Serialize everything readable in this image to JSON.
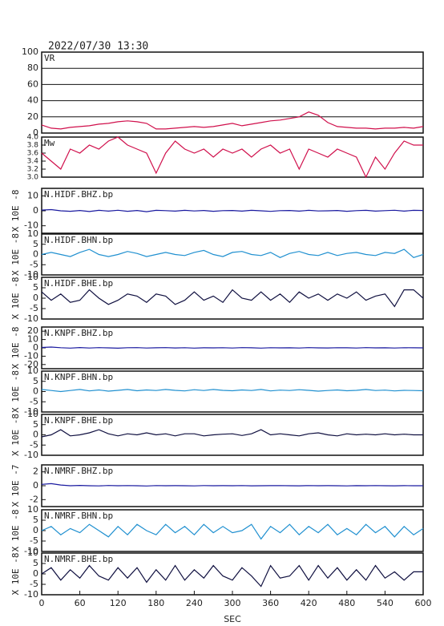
{
  "chart_data": [
    {
      "type": "line",
      "title": "2022/07/30 13:30",
      "label": "VR",
      "color": "#d0104c",
      "grid": true,
      "xlim": [
        0,
        600
      ],
      "ylim": [
        0,
        100
      ],
      "yticks": [
        0,
        20,
        40,
        60,
        80,
        100
      ],
      "x": [
        0,
        15,
        30,
        45,
        60,
        75,
        90,
        105,
        120,
        135,
        150,
        165,
        180,
        195,
        210,
        225,
        240,
        255,
        270,
        285,
        300,
        315,
        330,
        345,
        360,
        375,
        390,
        405,
        420,
        435,
        450,
        465,
        480,
        495,
        510,
        525,
        540,
        555,
        570,
        585,
        600
      ],
      "values": [
        10,
        6,
        5,
        7,
        8,
        9,
        11,
        12,
        14,
        15,
        14,
        12,
        5,
        5,
        6,
        7,
        8,
        7,
        8,
        10,
        12,
        9,
        11,
        13,
        15,
        16,
        18,
        20,
        26,
        22,
        13,
        8,
        7,
        6,
        6,
        5,
        6,
        6,
        7,
        6,
        8
      ]
    },
    {
      "type": "line",
      "label": "Mw",
      "color": "#d0104c",
      "grid": false,
      "xlim": [
        0,
        600
      ],
      "ylim": [
        3,
        4
      ],
      "yticks": [
        {
          "value": 3,
          "label": "3.0"
        },
        3.2,
        3.4,
        3.6,
        3.8,
        {
          "value": 4,
          "label": "4.0"
        }
      ],
      "x": [
        0,
        15,
        30,
        45,
        60,
        75,
        90,
        105,
        120,
        135,
        150,
        165,
        180,
        195,
        210,
        225,
        240,
        255,
        270,
        285,
        300,
        315,
        330,
        345,
        360,
        375,
        390,
        405,
        420,
        435,
        450,
        465,
        480,
        495,
        510,
        525,
        540,
        555,
        570,
        585,
        600
      ],
      "values": [
        3.6,
        3.4,
        3.2,
        3.7,
        3.6,
        3.8,
        3.7,
        3.9,
        4.0,
        3.8,
        3.7,
        3.6,
        3.1,
        3.6,
        3.9,
        3.7,
        3.6,
        3.7,
        3.5,
        3.7,
        3.6,
        3.7,
        3.5,
        3.7,
        3.8,
        3.6,
        3.7,
        3.2,
        3.7,
        3.6,
        3.5,
        3.7,
        3.6,
        3.5,
        3.0,
        3.5,
        3.2,
        3.6,
        3.9,
        3.8,
        3.8
      ]
    },
    {
      "type": "line",
      "label": "N.HIDF.BHZ.bp",
      "ylabel": "X 10E -8",
      "color": "#1a1aa0",
      "grid": false,
      "xlim": [
        0,
        600
      ],
      "ylim": [
        -15,
        15
      ],
      "yticks": [
        -10,
        0,
        10
      ],
      "x": [
        0,
        15,
        30,
        45,
        60,
        75,
        90,
        105,
        120,
        135,
        150,
        165,
        180,
        195,
        210,
        225,
        240,
        255,
        270,
        285,
        300,
        315,
        330,
        345,
        360,
        375,
        390,
        405,
        420,
        435,
        450,
        465,
        480,
        495,
        510,
        525,
        540,
        555,
        570,
        585,
        600
      ],
      "values": [
        0.5,
        0.8,
        0,
        -0.3,
        0.2,
        -0.5,
        0.3,
        -0.2,
        0.4,
        -0.3,
        0.2,
        -0.6,
        0.3,
        0.1,
        -0.2,
        0.3,
        -0.1,
        0.2,
        -0.3,
        0.1,
        0.2,
        -0.2,
        0.3,
        0,
        -0.4,
        0.1,
        0.2,
        -0.2,
        0.3,
        -0.1,
        0,
        0.2,
        -0.3,
        0.1,
        0.3,
        -0.2,
        0.1,
        0.4,
        -0.2,
        0.3,
        0.2
      ]
    },
    {
      "type": "line",
      "label": "N.HIDF.BHN.bp",
      "ylabel": "X 10E -8",
      "color": "#2090d0",
      "grid": false,
      "xlim": [
        0,
        600
      ],
      "ylim": [
        -10,
        10
      ],
      "yticks": [
        -10,
        -5,
        0,
        5,
        10
      ],
      "x": [
        0,
        15,
        30,
        45,
        60,
        75,
        90,
        105,
        120,
        135,
        150,
        165,
        180,
        195,
        210,
        225,
        240,
        255,
        270,
        285,
        300,
        315,
        330,
        345,
        360,
        375,
        390,
        405,
        420,
        435,
        450,
        465,
        480,
        495,
        510,
        525,
        540,
        555,
        570,
        585,
        600
      ],
      "values": [
        0,
        1,
        0,
        -1,
        1,
        2.5,
        0,
        -1,
        0,
        1.5,
        0.5,
        -1,
        0,
        1,
        0,
        -0.5,
        1,
        2,
        0,
        -1,
        1,
        1.5,
        0,
        -0.5,
        1,
        -1.5,
        0.5,
        1.5,
        0,
        -0.5,
        1,
        -0.5,
        0.5,
        1,
        0,
        -0.5,
        1,
        0.5,
        2.5,
        -1.5,
        0
      ]
    },
    {
      "type": "line",
      "label": "N.HIDF.BHE.bp",
      "ylabel": "X 10E -8",
      "color": "#101040",
      "grid": false,
      "xlim": [
        0,
        600
      ],
      "ylim": [
        -10,
        10
      ],
      "yticks": [
        -10,
        -5,
        0,
        5,
        10
      ],
      "x": [
        0,
        15,
        30,
        45,
        60,
        75,
        90,
        105,
        120,
        135,
        150,
        165,
        180,
        195,
        210,
        225,
        240,
        255,
        270,
        285,
        300,
        315,
        330,
        345,
        360,
        375,
        390,
        405,
        420,
        435,
        450,
        465,
        480,
        495,
        510,
        525,
        540,
        555,
        570,
        585,
        600
      ],
      "values": [
        3,
        -1,
        2,
        -2,
        -1,
        4,
        0,
        -3,
        -1,
        2,
        1,
        -2,
        2,
        1,
        -3,
        -1,
        3,
        -1,
        1,
        -2,
        4,
        0,
        -1,
        3,
        -1,
        2,
        -2,
        3,
        0,
        2,
        -1,
        2,
        0,
        3,
        -1,
        1,
        2,
        -4,
        4,
        4,
        0
      ]
    },
    {
      "type": "line",
      "label": "N.KNPF.BHZ.bp",
      "ylabel": "X 10E -8",
      "color": "#1a1aa0",
      "grid": false,
      "xlim": [
        0,
        600
      ],
      "ylim": [
        -25,
        25
      ],
      "yticks": [
        -20,
        -10,
        0,
        10,
        20
      ],
      "x": [
        0,
        15,
        30,
        45,
        60,
        75,
        90,
        105,
        120,
        135,
        150,
        165,
        180,
        195,
        210,
        225,
        240,
        255,
        270,
        285,
        300,
        315,
        330,
        345,
        360,
        375,
        390,
        405,
        420,
        435,
        450,
        465,
        480,
        495,
        510,
        525,
        540,
        555,
        570,
        585,
        600
      ],
      "values": [
        0.5,
        1,
        0.2,
        -0.3,
        0.4,
        -0.2,
        0.3,
        0,
        -0.4,
        0.2,
        0.3,
        -0.2,
        0.1,
        0.3,
        -0.1,
        0.2,
        -0.3,
        0.1,
        0,
        0.2,
        -0.2,
        0.3,
        0.1,
        -0.3,
        0.2,
        0,
        0.1,
        -0.2,
        0.3,
        0,
        -0.1,
        0.2,
        0.1,
        -0.2,
        0.3,
        0,
        0.1,
        -0.2,
        0.2,
        0.1,
        0
      ]
    },
    {
      "type": "line",
      "label": "N.KNPF.BHN.bp",
      "ylabel": "X 10E -8",
      "color": "#2090d0",
      "grid": false,
      "xlim": [
        0,
        600
      ],
      "ylim": [
        -10,
        10
      ],
      "yticks": [
        -10,
        -5,
        0,
        5,
        10
      ],
      "x": [
        0,
        15,
        30,
        45,
        60,
        75,
        90,
        105,
        120,
        135,
        150,
        165,
        180,
        195,
        210,
        225,
        240,
        255,
        270,
        285,
        300,
        315,
        330,
        345,
        360,
        375,
        390,
        405,
        420,
        435,
        450,
        465,
        480,
        495,
        510,
        525,
        540,
        555,
        570,
        585,
        600
      ],
      "values": [
        1,
        0.5,
        0,
        0.5,
        1,
        0.3,
        0.8,
        0.2,
        0.6,
        1,
        0.4,
        0.8,
        0.5,
        1,
        0.6,
        0.3,
        0.9,
        0.5,
        1,
        0.6,
        0.4,
        0.8,
        0.5,
        1,
        0.3,
        0.7,
        0.5,
        0.9,
        0.6,
        0.2,
        0.5,
        0.8,
        0.4,
        0.6,
        1,
        0.5,
        0.7,
        0.3,
        0.6,
        0.5,
        0.4
      ]
    },
    {
      "type": "line",
      "label": "N.KNPF.BHE.bp",
      "ylabel": "X 10E -8",
      "color": "#101040",
      "grid": false,
      "xlim": [
        0,
        600
      ],
      "ylim": [
        -10,
        10
      ],
      "yticks": [
        -10,
        -5,
        0,
        5,
        10
      ],
      "x": [
        0,
        15,
        30,
        45,
        60,
        75,
        90,
        105,
        120,
        135,
        150,
        165,
        180,
        195,
        210,
        225,
        240,
        255,
        270,
        285,
        300,
        315,
        330,
        345,
        360,
        375,
        390,
        405,
        420,
        435,
        450,
        465,
        480,
        495,
        510,
        525,
        540,
        555,
        570,
        585,
        600
      ],
      "values": [
        -1,
        0,
        2.5,
        -0.5,
        0,
        1,
        2.5,
        0.5,
        -0.5,
        0.5,
        0,
        1,
        0,
        0.5,
        -0.5,
        0.5,
        0.5,
        -0.5,
        0,
        0.3,
        0.5,
        -0.3,
        0.5,
        2.5,
        0,
        0.5,
        0,
        -0.5,
        0.5,
        1,
        0,
        -0.5,
        0.5,
        0,
        0.3,
        0,
        0.5,
        0,
        0.3,
        0,
        0
      ]
    },
    {
      "type": "line",
      "label": "N.NMRF.BHZ.bp",
      "ylabel": "X 10E -7",
      "color": "#1a1aa0",
      "grid": false,
      "xlim": [
        0,
        600
      ],
      "ylim": [
        -3,
        3
      ],
      "yticks": [
        -2,
        0,
        2
      ],
      "x": [
        0,
        15,
        30,
        45,
        60,
        75,
        90,
        105,
        120,
        135,
        150,
        165,
        180,
        195,
        210,
        225,
        240,
        255,
        270,
        285,
        300,
        315,
        330,
        345,
        360,
        375,
        390,
        405,
        420,
        435,
        450,
        465,
        480,
        495,
        510,
        525,
        540,
        555,
        570,
        585,
        600
      ],
      "values": [
        0.2,
        0.3,
        0.1,
        0,
        0.05,
        0,
        -0.02,
        0.03,
        0,
        0.02,
        0,
        -0.03,
        0.02,
        0,
        0.01,
        0,
        -0.02,
        0.02,
        0,
        0.01,
        0,
        0.02,
        -0.01,
        0,
        0.01,
        0.02,
        0,
        -0.01,
        0.02,
        0,
        0.01,
        0,
        -0.02,
        0.01,
        0,
        0.02,
        0,
        -0.01,
        0.01,
        0,
        0
      ]
    },
    {
      "type": "line",
      "label": "N.NMRF.BHN.bp",
      "ylabel": "X 10E -8",
      "color": "#2090d0",
      "grid": false,
      "xlim": [
        0,
        600
      ],
      "ylim": [
        -10,
        10
      ],
      "yticks": [
        -10,
        -5,
        0,
        5,
        10
      ],
      "x": [
        0,
        15,
        30,
        45,
        60,
        75,
        90,
        105,
        120,
        135,
        150,
        165,
        180,
        195,
        210,
        225,
        240,
        255,
        270,
        285,
        300,
        315,
        330,
        345,
        360,
        375,
        390,
        405,
        420,
        435,
        450,
        465,
        480,
        495,
        510,
        525,
        540,
        555,
        570,
        585,
        600
      ],
      "values": [
        0,
        2,
        -2,
        1,
        -1,
        3,
        0,
        -3,
        2,
        -2,
        3,
        0,
        -2,
        3,
        -1,
        2,
        -2,
        3,
        -1,
        2,
        -1,
        0,
        3,
        -4,
        2,
        -1,
        3,
        -2,
        2,
        -1,
        3,
        -2,
        1,
        -2,
        3,
        -1,
        2,
        -3,
        2,
        -2,
        1
      ]
    },
    {
      "type": "line",
      "label": "N.NMRF.BHE.bp",
      "ylabel": "X 10E -8",
      "color": "#101040",
      "grid": false,
      "xlim": [
        0,
        600
      ],
      "ylim": [
        -10,
        10
      ],
      "yticks": [
        -10,
        -5,
        0,
        5,
        10
      ],
      "xticks": [
        0,
        60,
        120,
        180,
        240,
        300,
        360,
        420,
        480,
        540,
        600
      ],
      "xlabel": "SEC",
      "x": [
        0,
        15,
        30,
        45,
        60,
        75,
        90,
        105,
        120,
        135,
        150,
        165,
        180,
        195,
        210,
        225,
        240,
        255,
        270,
        285,
        300,
        315,
        330,
        345,
        360,
        375,
        390,
        405,
        420,
        435,
        450,
        465,
        480,
        495,
        510,
        525,
        540,
        555,
        570,
        585,
        600
      ],
      "values": [
        0,
        3,
        -3,
        2,
        -2,
        4,
        -1,
        -3,
        3,
        -2,
        3,
        -4,
        2,
        -3,
        4,
        -3,
        2,
        -2,
        4,
        -1,
        -3,
        3,
        -1,
        -6,
        4,
        -2,
        -1,
        4,
        -3,
        4,
        -2,
        3,
        -3,
        2,
        -3,
        4,
        -2,
        1,
        -3,
        1,
        1
      ]
    }
  ]
}
